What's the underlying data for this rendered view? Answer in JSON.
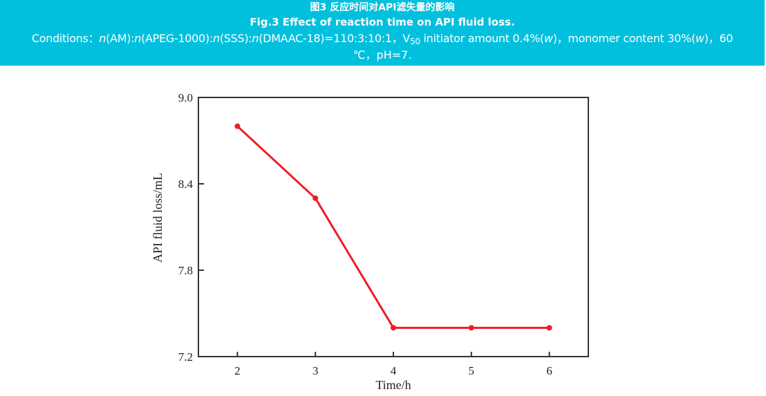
{
  "caption": {
    "cn_title": "图3 反应时间对API滤失量的影响",
    "en_title": "Fig.3 Effect of reaction time on API fluid loss.",
    "conditions_prefix": "Conditions：",
    "conditions_ratio_parts": [
      "n",
      "(AM):",
      "n",
      "(APEG-1000):",
      "n",
      "(SSS):",
      "n",
      "(DMAAC-18)=110:3:10:1，V"
    ],
    "conditions_sub": "50",
    "conditions_initiator": " initiator amount 0.4%(",
    "conditions_w1": "w",
    "conditions_monomer": ")，monomer content 30%(",
    "conditions_w2": "w",
    "conditions_end1": ")，60",
    "conditions_line2": "℃，pH=7.",
    "banner_color": "#00C0DE"
  },
  "chart_data": {
    "type": "line",
    "title": "Effect of reaction time on API fluid loss",
    "xlabel": "Time/h",
    "ylabel": "API fluid loss/mL",
    "x": [
      2,
      3,
      4,
      5,
      6
    ],
    "series": [
      {
        "name": "API fluid loss",
        "values": [
          8.8,
          8.3,
          7.4,
          7.4,
          7.4
        ],
        "color": "#EE1C25",
        "marker": "circle"
      }
    ],
    "xlim": [
      1.5,
      6.5
    ],
    "ylim": [
      7.2,
      9.0
    ],
    "xticks": [
      "2",
      "3",
      "4",
      "5",
      "6"
    ],
    "yticks": [
      "7.2",
      "7.8",
      "8.4",
      "9.0"
    ],
    "grid": false,
    "legend": null
  }
}
